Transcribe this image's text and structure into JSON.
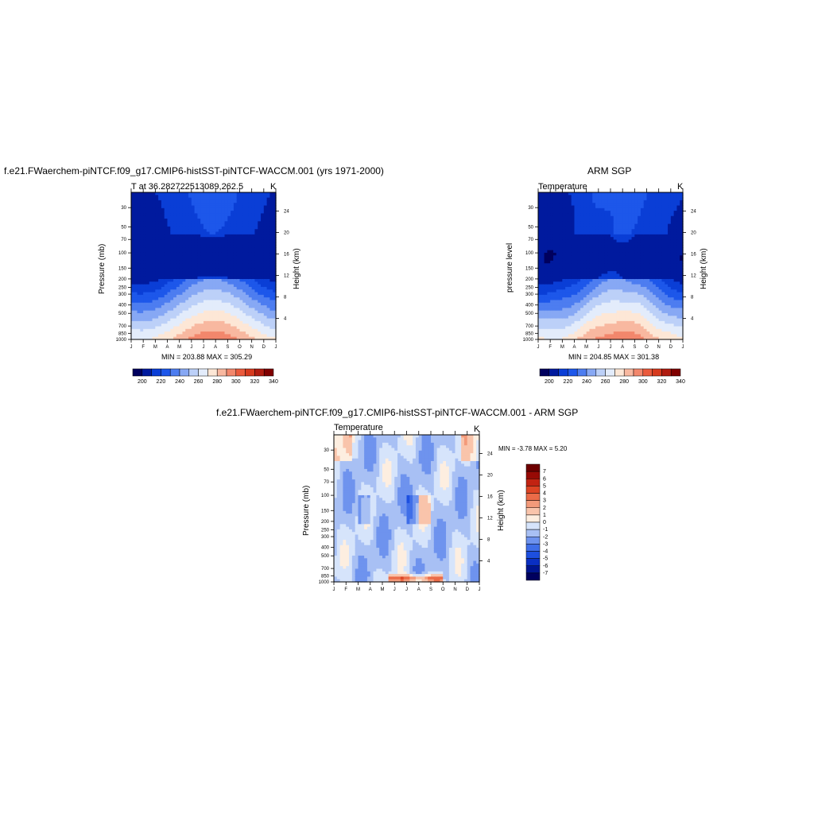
{
  "chart_data": [
    {
      "type": "heatmap",
      "title": "f.e21.FWaerchem-piNTCF.f09_g17.CMIP6-histSST-piNTCF-WACCM.001 (yrs 1971-2000)",
      "left_subtitle": "T at 36.282722513089,262.5",
      "right_subtitle": "K",
      "ylabel": "Pressure (mb)",
      "right_ylabel": "Height (km)",
      "x_ticks": [
        "J",
        "F",
        "M",
        "A",
        "M",
        "J",
        "J",
        "A",
        "S",
        "O",
        "N",
        "D",
        "J"
      ],
      "pressure_ticks": [
        "30",
        "50",
        "70",
        "100",
        "150",
        "200",
        "250",
        "300",
        "400",
        "500",
        "700",
        "850",
        "1000"
      ],
      "height_ticks": [
        "24",
        "20",
        "16",
        "12",
        "8",
        "4"
      ],
      "stats": "MIN = 203.88 MAX = 305.29",
      "colorbar_labels": [
        "200",
        "220",
        "240",
        "260",
        "280",
        "300",
        "320",
        "340"
      ],
      "value_range": [
        203.88,
        305.29
      ],
      "levels": [
        190,
        200,
        210,
        220,
        230,
        240,
        250,
        260,
        270,
        280,
        290,
        300,
        310,
        320,
        330,
        340,
        350
      ]
    },
    {
      "type": "heatmap",
      "title": "ARM SGP",
      "left_subtitle": "Temperature",
      "right_subtitle": "K",
      "ylabel": "pressure level",
      "right_ylabel": "Height (km)",
      "x_ticks": [
        "J",
        "F",
        "M",
        "A",
        "M",
        "J",
        "J",
        "A",
        "S",
        "O",
        "N",
        "D",
        "J"
      ],
      "pressure_ticks": [
        "30",
        "50",
        "70",
        "100",
        "150",
        "200",
        "250",
        "300",
        "400",
        "500",
        "700",
        "850",
        "1000"
      ],
      "height_ticks": [
        "24",
        "20",
        "16",
        "12",
        "8",
        "4"
      ],
      "stats": "MIN = 204.85 MAX = 301.38",
      "colorbar_labels": [
        "200",
        "220",
        "240",
        "260",
        "280",
        "300",
        "320",
        "340"
      ],
      "value_range": [
        204.85,
        301.38
      ]
    },
    {
      "type": "heatmap",
      "title": "f.e21.FWaerchem-piNTCF.f09_g17.CMIP6-histSST-piNTCF-WACCM.001 - ARM SGP",
      "left_subtitle": "Temperature",
      "right_subtitle": "K",
      "ylabel": "Pressure (mb)",
      "right_ylabel": "Height (km)",
      "x_ticks": [
        "J",
        "F",
        "M",
        "A",
        "M",
        "J",
        "J",
        "A",
        "S",
        "O",
        "N",
        "D",
        "J"
      ],
      "pressure_ticks": [
        "30",
        "50",
        "70",
        "100",
        "150",
        "200",
        "250",
        "300",
        "400",
        "500",
        "700",
        "850",
        "1000"
      ],
      "height_ticks": [
        "24",
        "20",
        "16",
        "12",
        "8",
        "4"
      ],
      "stats": "MIN =  -3.78 MAX =   5.20",
      "colorbar_labels": [
        "7",
        "6",
        "5",
        "4",
        "3",
        "2",
        "1",
        "0",
        "-1",
        "-2",
        "-3",
        "-4",
        "-5",
        "-6",
        "-7"
      ],
      "value_range": [
        -3.78,
        5.2
      ]
    }
  ],
  "colors": {
    "temperature_palette": [
      "#00005e",
      "#001a9e",
      "#0a3ed6",
      "#1d57ea",
      "#4d7df0",
      "#87a8f4",
      "#bcd0f8",
      "#e3ecfb",
      "#fde7d6",
      "#f8b8a0",
      "#f2876c",
      "#ea5a3c",
      "#d63a1e",
      "#b01c10",
      "#800000"
    ],
    "difference_palette": [
      "#00005e",
      "#001590",
      "#0a2fc2",
      "#1d4fe0",
      "#3f6ee8",
      "#6e93ee",
      "#a8c0f4",
      "#d6e4fb",
      "#fdeee0",
      "#f9c4ab",
      "#f39a7a",
      "#eb6b48",
      "#dd4424",
      "#c22312",
      "#970a05",
      "#6e0000"
    ]
  }
}
